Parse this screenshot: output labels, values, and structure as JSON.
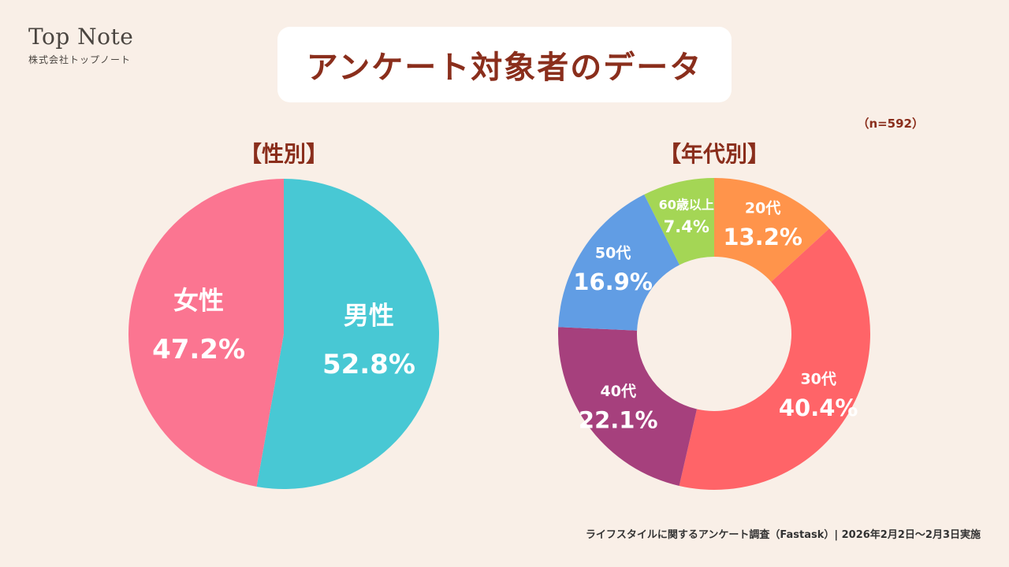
{
  "logo": {
    "main": "Top Note",
    "sub": "株式会社トップノート"
  },
  "title": "アンケート対象者のデータ",
  "sample_size": "（n=592）",
  "footer": "ライフスタイルに関するアンケート調査（Fastask）| 2026年2月2日〜2月3日実施",
  "chart_data": [
    {
      "type": "pie",
      "title": "【性別】",
      "slices": [
        {
          "label": "男性",
          "value": 52.8,
          "display": "52.8%",
          "color": "#48c8d4"
        },
        {
          "label": "女性",
          "value": 47.2,
          "display": "47.2%",
          "color": "#fb7591"
        }
      ]
    },
    {
      "type": "pie",
      "donut": true,
      "title": "【年代別】",
      "slices": [
        {
          "label": "20代",
          "value": 13.2,
          "display": "13.2%",
          "color": "#ff944b"
        },
        {
          "label": "30代",
          "value": 40.4,
          "display": "40.4%",
          "color": "#ff6468"
        },
        {
          "label": "40代",
          "value": 22.1,
          "display": "22.1%",
          "color": "#a6407d"
        },
        {
          "label": "50代",
          "value": 16.9,
          "display": "16.9%",
          "color": "#619de4"
        },
        {
          "label": "60歳以上",
          "value": 7.4,
          "display": "7.4%",
          "color": "#a4d655"
        }
      ]
    }
  ]
}
